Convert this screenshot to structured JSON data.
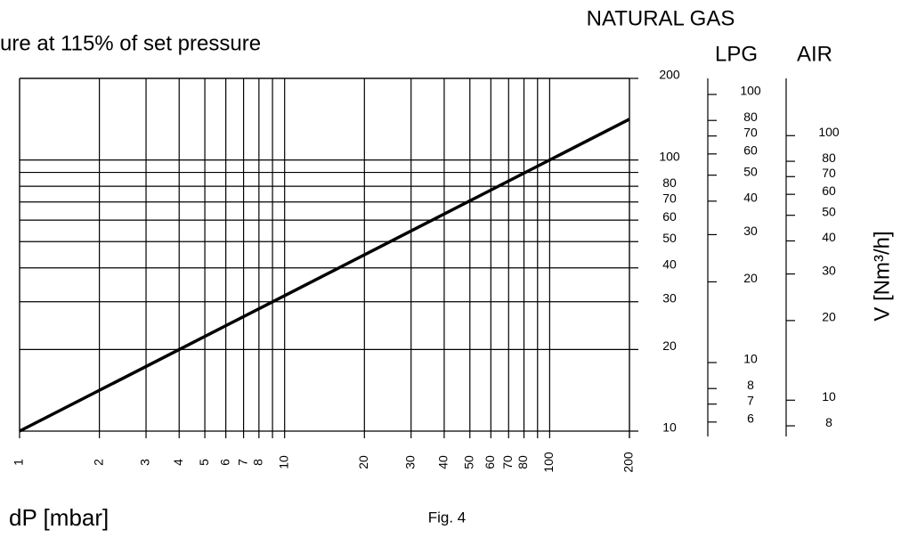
{
  "chart_data": {
    "type": "line",
    "title": "ure at 115% of set pressure",
    "xlabel": "dP [mbar]",
    "ylabel": "V [Nm³/h]",
    "caption": "Fig. 4",
    "y_name": "NATURAL GAS",
    "log_scale": true,
    "grid": true,
    "x": [
      1,
      10,
      100,
      200
    ],
    "series": [
      {
        "color": "#000000",
        "values": [
          10,
          31.6,
          100,
          141.4
        ]
      }
    ],
    "xlim": [
      1,
      200
    ],
    "ylim": [
      10,
      200
    ],
    "xticks": [
      1,
      2,
      3,
      4,
      5,
      6,
      7,
      8,
      10,
      20,
      30,
      40,
      50,
      60,
      70,
      80,
      100,
      200
    ],
    "xminor": [
      9,
      90
    ],
    "yticks": [
      10,
      20,
      30,
      40,
      50,
      60,
      70,
      80,
      100,
      200
    ],
    "yminor": [
      90
    ],
    "scales": [
      {
        "name": "LPG",
        "ylim": [
          5.55,
          114.8
        ],
        "ticks": [
          6,
          7,
          8,
          10,
          20,
          30,
          40,
          50,
          60,
          70,
          80,
          100
        ]
      },
      {
        "name": "AIR",
        "ylim": [
          7.64,
          164.6
        ],
        "ticks": [
          8,
          10,
          20,
          30,
          40,
          50,
          60,
          70,
          80,
          100
        ]
      }
    ]
  }
}
